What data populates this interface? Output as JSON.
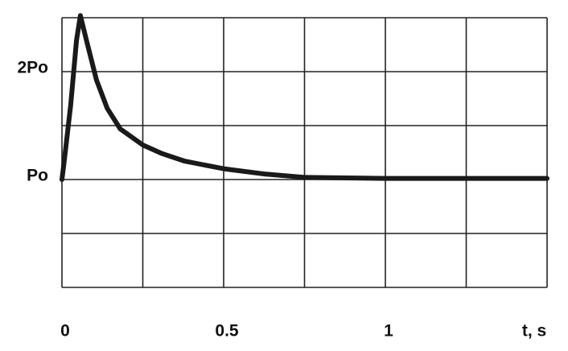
{
  "chart_data": {
    "type": "line",
    "x_label": "t, s",
    "x": [
      0,
      0.007,
      0.027,
      0.045,
      0.057,
      0.075,
      0.107,
      0.14,
      0.18,
      0.25,
      0.31,
      0.38,
      0.5,
      0.63,
      0.75,
      1.0,
      1.25,
      1.5
    ],
    "series": [
      {
        "color": "#1a1a1a",
        "values": [
          1.0,
          1.17,
          1.69,
          2.29,
          2.52,
          2.3,
          1.92,
          1.66,
          1.47,
          1.32,
          1.24,
          1.17,
          1.1,
          1.05,
          1.02,
          1.01,
          1.01,
          1.01
        ]
      }
    ],
    "xlim": [
      0,
      1.5
    ],
    "xticks": [
      0,
      0.5,
      1
    ],
    "xgrid": [
      0,
      0.25,
      0.5,
      0.75,
      1,
      1.25,
      1.5
    ],
    "ylim": [
      0,
      2.5
    ],
    "yticks": [
      {
        "value": 1,
        "label": "Po"
      },
      {
        "value": 2,
        "label": "2Po"
      }
    ],
    "ygrid": [
      0,
      0.5,
      1,
      1.5,
      2,
      2.5
    ],
    "grid": true
  }
}
